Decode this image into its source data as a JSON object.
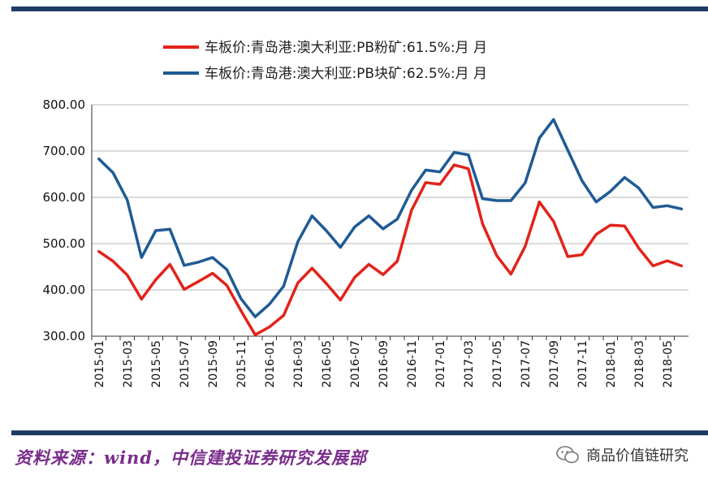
{
  "source_note": "资料来源：wind，中信建投证券研究发展部",
  "watermark": "商品价值链研究",
  "colors": {
    "frame": "#1f3b64",
    "fines": "#e2231a",
    "lump": "#1f5a95",
    "source": "#7a2d8c"
  },
  "chart_data": {
    "type": "line",
    "title": "",
    "xlabel": "",
    "ylabel": "",
    "ylim": [
      300,
      800
    ],
    "yticks": [
      "800.00",
      "700.00",
      "600.00",
      "500.00",
      "400.00",
      "300.00"
    ],
    "grid": true,
    "legend_position": "top",
    "x": [
      "2015-01",
      "2015-02",
      "2015-03",
      "2015-04",
      "2015-05",
      "2015-06",
      "2015-07",
      "2015-08",
      "2015-09",
      "2015-10",
      "2015-11",
      "2015-12",
      "2016-01",
      "2016-02",
      "2016-03",
      "2016-04",
      "2016-05",
      "2016-06",
      "2016-07",
      "2016-08",
      "2016-09",
      "2016-10",
      "2016-11",
      "2016-12",
      "2017-01",
      "2017-02",
      "2017-03",
      "2017-04",
      "2017-05",
      "2017-06",
      "2017-07",
      "2017-08",
      "2017-09",
      "2017-10",
      "2017-11",
      "2017-12",
      "2018-01",
      "2018-02",
      "2018-03",
      "2018-04",
      "2018-05",
      "2018-06"
    ],
    "x_tick_labels": [
      "2015-01",
      "2015-03",
      "2015-05",
      "2015-07",
      "2015-09",
      "2015-11",
      "2016-01",
      "2016-03",
      "2016-05",
      "2016-07",
      "2016-09",
      "2016-11",
      "2017-01",
      "2017-03",
      "2017-05",
      "2017-07",
      "2017-09",
      "2017-11",
      "2018-01",
      "2018-03",
      "2018-05"
    ],
    "series": [
      {
        "name": "车板价:青岛港:澳大利亚:PB粉矿:61.5%:月 月",
        "color": "#e2231a",
        "values": [
          483,
          462,
          432,
          380,
          422,
          455,
          401,
          418,
          436,
          410,
          355,
          303,
          320,
          345,
          415,
          447,
          414,
          378,
          427,
          455,
          433,
          462,
          572,
          632,
          628,
          670,
          662,
          543,
          474,
          434,
          494,
          590,
          548,
          472,
          476,
          520,
          540,
          538,
          490,
          452,
          463,
          452
        ]
      },
      {
        "name": "车板价:青岛港:澳大利亚:PB块矿:62.5%:月 月",
        "color": "#1f5a95",
        "values": [
          683,
          653,
          594,
          470,
          528,
          531,
          453,
          460,
          470,
          444,
          381,
          342,
          369,
          408,
          504,
          560,
          528,
          492,
          536,
          560,
          532,
          553,
          615,
          659,
          655,
          697,
          692,
          597,
          593,
          593,
          631,
          728,
          768,
          702,
          636,
          590,
          613,
          643,
          620,
          578,
          582,
          575
        ]
      }
    ]
  }
}
